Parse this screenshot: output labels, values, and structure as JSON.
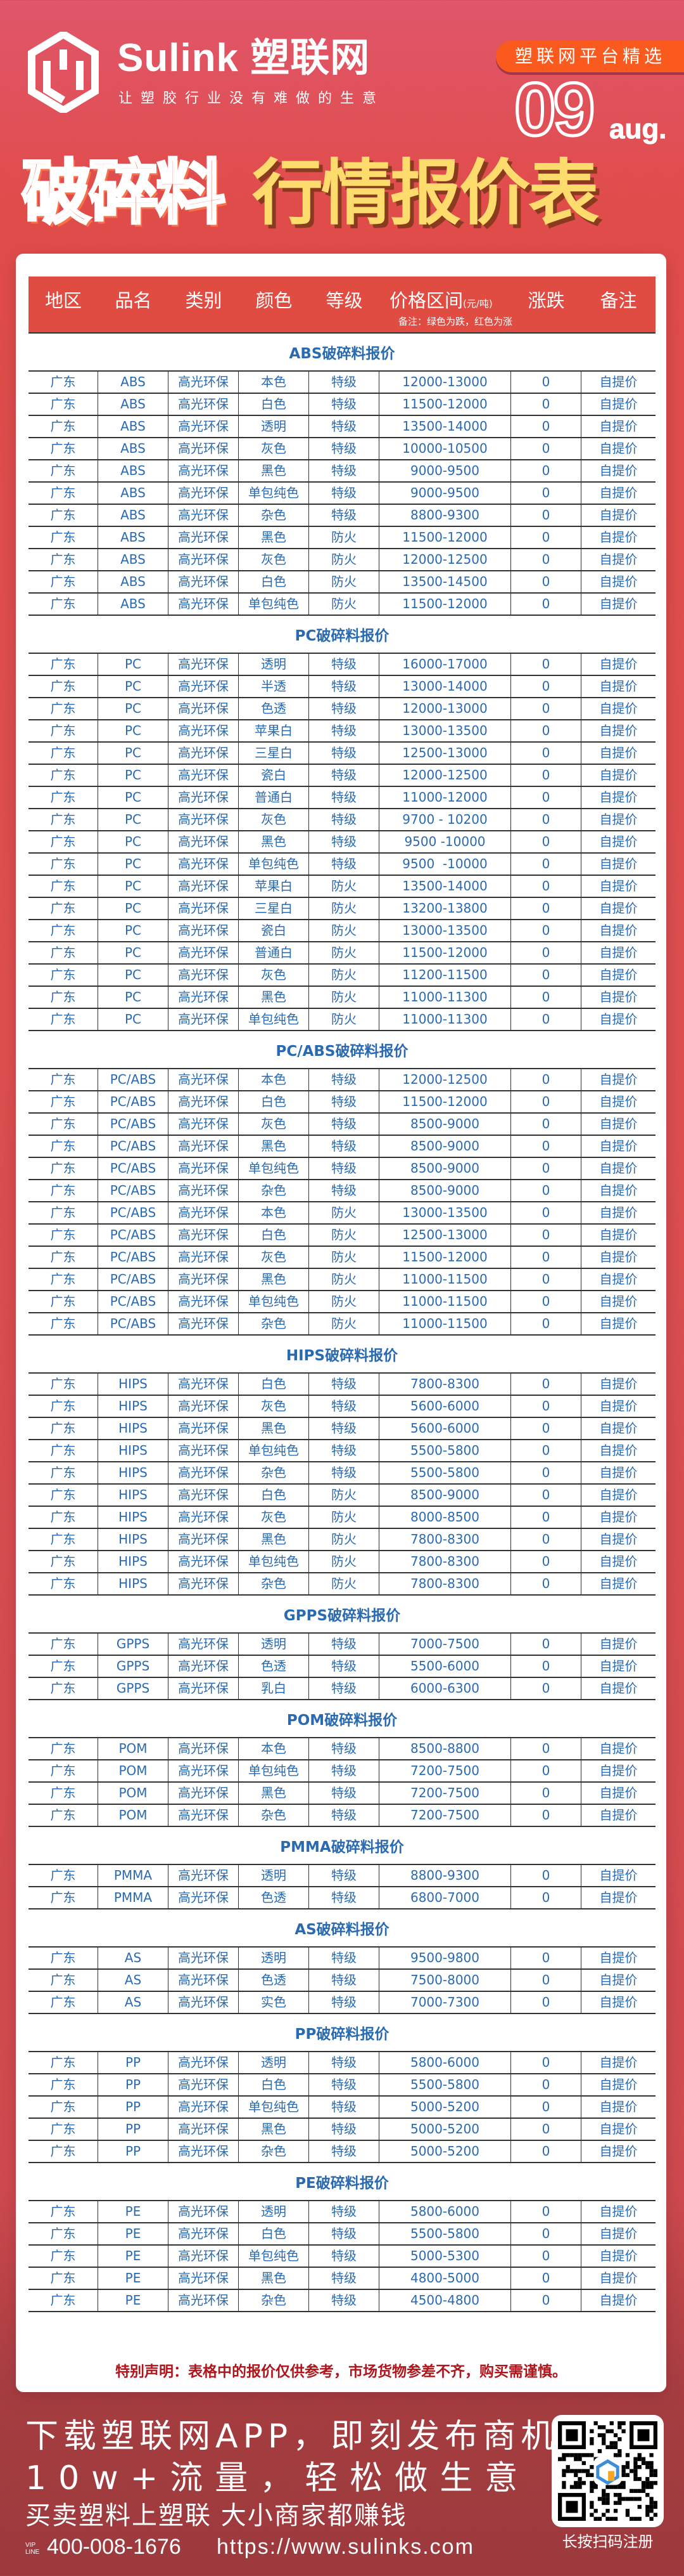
{
  "brand": {
    "name": "Sulink 塑联网",
    "slogan": "让塑胶行业没有难做的生意",
    "badge": "塑联网平台精选"
  },
  "date": {
    "day": "09",
    "month": "aug."
  },
  "title": {
    "part1": "破碎料",
    "part2": "行情报价表"
  },
  "colors": {
    "header_red": "#e14c42",
    "data_blue": "#2a6ab0",
    "title_yellow": "#fddb6d",
    "disclaimer_red": "#b0151c"
  },
  "table": {
    "headers": [
      "地区",
      "品名",
      "类别",
      "颜色",
      "等级",
      "价格区间",
      "涨跌",
      "备注"
    ],
    "price_unit": "(元/吨)",
    "legend_note": "备注：绿色为跌，红色为涨",
    "sections": [
      {
        "title": "ABS破碎料报价",
        "rows": [
          [
            "广东",
            "ABS",
            "高光环保",
            "本色",
            "特级",
            "12000-13000",
            "0",
            "自提价"
          ],
          [
            "广东",
            "ABS",
            "高光环保",
            "白色",
            "特级",
            "11500-12000",
            "0",
            "自提价"
          ],
          [
            "广东",
            "ABS",
            "高光环保",
            "透明",
            "特级",
            "13500-14000",
            "0",
            "自提价"
          ],
          [
            "广东",
            "ABS",
            "高光环保",
            "灰色",
            "特级",
            "10000-10500",
            "0",
            "自提价"
          ],
          [
            "广东",
            "ABS",
            "高光环保",
            "黑色",
            "特级",
            "9000-9500",
            "0",
            "自提价"
          ],
          [
            "广东",
            "ABS",
            "高光环保",
            "单包纯色",
            "特级",
            "9000-9500",
            "0",
            "自提价"
          ],
          [
            "广东",
            "ABS",
            "高光环保",
            "杂色",
            "特级",
            "8800-9300",
            "0",
            "自提价"
          ],
          [
            "广东",
            "ABS",
            "高光环保",
            "黑色",
            "防火",
            "11500-12000",
            "0",
            "自提价"
          ],
          [
            "广东",
            "ABS",
            "高光环保",
            "灰色",
            "防火",
            "12000-12500",
            "0",
            "自提价"
          ],
          [
            "广东",
            "ABS",
            "高光环保",
            "白色",
            "防火",
            "13500-14500",
            "0",
            "自提价"
          ],
          [
            "广东",
            "ABS",
            "高光环保",
            "单包纯色",
            "防火",
            "11500-12000",
            "0",
            "自提价"
          ]
        ]
      },
      {
        "title": "PC破碎料报价",
        "rows": [
          [
            "广东",
            "PC",
            "高光环保",
            "透明",
            "特级",
            "16000-17000",
            "0",
            "自提价"
          ],
          [
            "广东",
            "PC",
            "高光环保",
            "半透",
            "特级",
            "13000-14000",
            "0",
            "自提价"
          ],
          [
            "广东",
            "PC",
            "高光环保",
            "色透",
            "特级",
            "12000-13000",
            "0",
            "自提价"
          ],
          [
            "广东",
            "PC",
            "高光环保",
            "苹果白",
            "特级",
            "13000-13500",
            "0",
            "自提价"
          ],
          [
            "广东",
            "PC",
            "高光环保",
            "三星白",
            "特级",
            "12500-13000",
            "0",
            "自提价"
          ],
          [
            "广东",
            "PC",
            "高光环保",
            "瓷白",
            "特级",
            "12000-12500",
            "0",
            "自提价"
          ],
          [
            "广东",
            "PC",
            "高光环保",
            "普通白",
            "特级",
            "11000-12000",
            "0",
            "自提价"
          ],
          [
            "广东",
            "PC",
            "高光环保",
            "灰色",
            "特级",
            "9700 - 10200",
            "0",
            "自提价"
          ],
          [
            "广东",
            "PC",
            "高光环保",
            "黑色",
            "特级",
            "9500 -10000",
            "0",
            "自提价"
          ],
          [
            "广东",
            "PC",
            "高光环保",
            "单包纯色",
            "特级",
            "9500  -10000",
            "0",
            "自提价"
          ],
          [
            "广东",
            "PC",
            "高光环保",
            "苹果白",
            "防火",
            "13500-14000",
            "0",
            "自提价"
          ],
          [
            "广东",
            "PC",
            "高光环保",
            "三星白",
            "防火",
            "13200-13800",
            "0",
            "自提价"
          ],
          [
            "广东",
            "PC",
            "高光环保",
            "瓷白",
            "防火",
            "13000-13500",
            "0",
            "自提价"
          ],
          [
            "广东",
            "PC",
            "高光环保",
            "普通白",
            "防火",
            "11500-12000",
            "0",
            "自提价"
          ],
          [
            "广东",
            "PC",
            "高光环保",
            "灰色",
            "防火",
            "11200-11500",
            "0",
            "自提价"
          ],
          [
            "广东",
            "PC",
            "高光环保",
            "黑色",
            "防火",
            "11000-11300",
            "0",
            "自提价"
          ],
          [
            "广东",
            "PC",
            "高光环保",
            "单包纯色",
            "防火",
            "11000-11300",
            "0",
            "自提价"
          ]
        ]
      },
      {
        "title": "PC/ABS破碎料报价",
        "rows": [
          [
            "广东",
            "PC/ABS",
            "高光环保",
            "本色",
            "特级",
            "12000-12500",
            "0",
            "自提价"
          ],
          [
            "广东",
            "PC/ABS",
            "高光环保",
            "白色",
            "特级",
            "11500-12000",
            "0",
            "自提价"
          ],
          [
            "广东",
            "PC/ABS",
            "高光环保",
            "灰色",
            "特级",
            "8500-9000",
            "0",
            "自提价"
          ],
          [
            "广东",
            "PC/ABS",
            "高光环保",
            "黑色",
            "特级",
            "8500-9000",
            "0",
            "自提价"
          ],
          [
            "广东",
            "PC/ABS",
            "高光环保",
            "单包纯色",
            "特级",
            "8500-9000",
            "0",
            "自提价"
          ],
          [
            "广东",
            "PC/ABS",
            "高光环保",
            "杂色",
            "特级",
            "8500-9000",
            "0",
            "自提价"
          ],
          [
            "广东",
            "PC/ABS",
            "高光环保",
            "本色",
            "防火",
            "13000-13500",
            "0",
            "自提价"
          ],
          [
            "广东",
            "PC/ABS",
            "高光环保",
            "白色",
            "防火",
            "12500-13000",
            "0",
            "自提价"
          ],
          [
            "广东",
            "PC/ABS",
            "高光环保",
            "灰色",
            "防火",
            "11500-12000",
            "0",
            "自提价"
          ],
          [
            "广东",
            "PC/ABS",
            "高光环保",
            "黑色",
            "防火",
            "11000-11500",
            "0",
            "自提价"
          ],
          [
            "广东",
            "PC/ABS",
            "高光环保",
            "单包纯色",
            "防火",
            "11000-11500",
            "0",
            "自提价"
          ],
          [
            "广东",
            "PC/ABS",
            "高光环保",
            "杂色",
            "防火",
            "11000-11500",
            "0",
            "自提价"
          ]
        ]
      },
      {
        "title": "HIPS破碎料报价",
        "rows": [
          [
            "广东",
            "HIPS",
            "高光环保",
            "白色",
            "特级",
            "7800-8300",
            "0",
            "自提价"
          ],
          [
            "广东",
            "HIPS",
            "高光环保",
            "灰色",
            "特级",
            "5600-6000",
            "0",
            "自提价"
          ],
          [
            "广东",
            "HIPS",
            "高光环保",
            "黑色",
            "特级",
            "5600-6000",
            "0",
            "自提价"
          ],
          [
            "广东",
            "HIPS",
            "高光环保",
            "单包纯色",
            "特级",
            "5500-5800",
            "0",
            "自提价"
          ],
          [
            "广东",
            "HIPS",
            "高光环保",
            "杂色",
            "特级",
            "5500-5800",
            "0",
            "自提价"
          ],
          [
            "广东",
            "HIPS",
            "高光环保",
            "白色",
            "防火",
            "8500-9000",
            "0",
            "自提价"
          ],
          [
            "广东",
            "HIPS",
            "高光环保",
            "灰色",
            "防火",
            "8000-8500",
            "0",
            "自提价"
          ],
          [
            "广东",
            "HIPS",
            "高光环保",
            "黑色",
            "防火",
            "7800-8300",
            "0",
            "自提价"
          ],
          [
            "广东",
            "HIPS",
            "高光环保",
            "单包纯色",
            "防火",
            "7800-8300",
            "0",
            "自提价"
          ],
          [
            "广东",
            "HIPS",
            "高光环保",
            "杂色",
            "防火",
            "7800-8300",
            "0",
            "自提价"
          ]
        ]
      },
      {
        "title": "GPPS破碎料报价",
        "rows": [
          [
            "广东",
            "GPPS",
            "高光环保",
            "透明",
            "特级",
            "7000-7500",
            "0",
            "自提价"
          ],
          [
            "广东",
            "GPPS",
            "高光环保",
            "色透",
            "特级",
            "5500-6000",
            "0",
            "自提价"
          ],
          [
            "广东",
            "GPPS",
            "高光环保",
            "乳白",
            "特级",
            "6000-6300",
            "0",
            "自提价"
          ]
        ]
      },
      {
        "title": "POM破碎料报价",
        "rows": [
          [
            "广东",
            "POM",
            "高光环保",
            "本色",
            "特级",
            "8500-8800",
            "0",
            "自提价"
          ],
          [
            "广东",
            "POM",
            "高光环保",
            "单包纯色",
            "特级",
            "7200-7500",
            "0",
            "自提价"
          ],
          [
            "广东",
            "POM",
            "高光环保",
            "黑色",
            "特级",
            "7200-7500",
            "0",
            "自提价"
          ],
          [
            "广东",
            "POM",
            "高光环保",
            "杂色",
            "特级",
            "7200-7500",
            "0",
            "自提价"
          ]
        ]
      },
      {
        "title": "PMMA破碎料报价",
        "rows": [
          [
            "广东",
            "PMMA",
            "高光环保",
            "透明",
            "特级",
            "8800-9300",
            "0",
            "自提价"
          ],
          [
            "广东",
            "PMMA",
            "高光环保",
            "色透",
            "特级",
            "6800-7000",
            "0",
            "自提价"
          ]
        ]
      },
      {
        "title": "AS破碎料报价",
        "rows": [
          [
            "广东",
            "AS",
            "高光环保",
            "透明",
            "特级",
            "9500-9800",
            "0",
            "自提价"
          ],
          [
            "广东",
            "AS",
            "高光环保",
            "色透",
            "特级",
            "7500-8000",
            "0",
            "自提价"
          ],
          [
            "广东",
            "AS",
            "高光环保",
            "实色",
            "特级",
            "7000-7300",
            "0",
            "自提价"
          ]
        ]
      },
      {
        "title": "PP破碎料报价",
        "rows": [
          [
            "广东",
            "PP",
            "高光环保",
            "透明",
            "特级",
            "5800-6000",
            "0",
            "自提价"
          ],
          [
            "广东",
            "PP",
            "高光环保",
            "白色",
            "特级",
            "5500-5800",
            "0",
            "自提价"
          ],
          [
            "广东",
            "PP",
            "高光环保",
            "单包纯色",
            "特级",
            "5000-5200",
            "0",
            "自提价"
          ],
          [
            "广东",
            "PP",
            "高光环保",
            "黑色",
            "特级",
            "5000-5200",
            "0",
            "自提价"
          ],
          [
            "广东",
            "PP",
            "高光环保",
            "杂色",
            "特级",
            "5000-5200",
            "0",
            "自提价"
          ]
        ]
      },
      {
        "title": "PE破碎料报价",
        "rows": [
          [
            "广东",
            "PE",
            "高光环保",
            "透明",
            "特级",
            "5800-6000",
            "0",
            "自提价"
          ],
          [
            "广东",
            "PE",
            "高光环保",
            "白色",
            "特级",
            "5500-5800",
            "0",
            "自提价"
          ],
          [
            "广东",
            "PE",
            "高光环保",
            "单包纯色",
            "特级",
            "5000-5300",
            "0",
            "自提价"
          ],
          [
            "广东",
            "PE",
            "高光环保",
            "黑色",
            "特级",
            "4800-5000",
            "0",
            "自提价"
          ],
          [
            "广东",
            "PE",
            "高光环保",
            "杂色",
            "特级",
            "4500-4800",
            "0",
            "自提价"
          ]
        ]
      }
    ]
  },
  "disclaimer": "特别声明：表格中的报价仅供参考，市场货物参差不齐，购买需谨慎。",
  "footer": {
    "line1": "下载塑联网APP，即刻发布商机",
    "line2": "10w+流量，轻松做生意",
    "line3": "买卖塑料上塑联 大小商家都赚钱",
    "vip_label": "VIP LINE",
    "phone": "400-008-1676",
    "website": "https://www.sulinks.com",
    "qr_label": "长按扫码注册",
    "qr_icon": "qr-code"
  }
}
